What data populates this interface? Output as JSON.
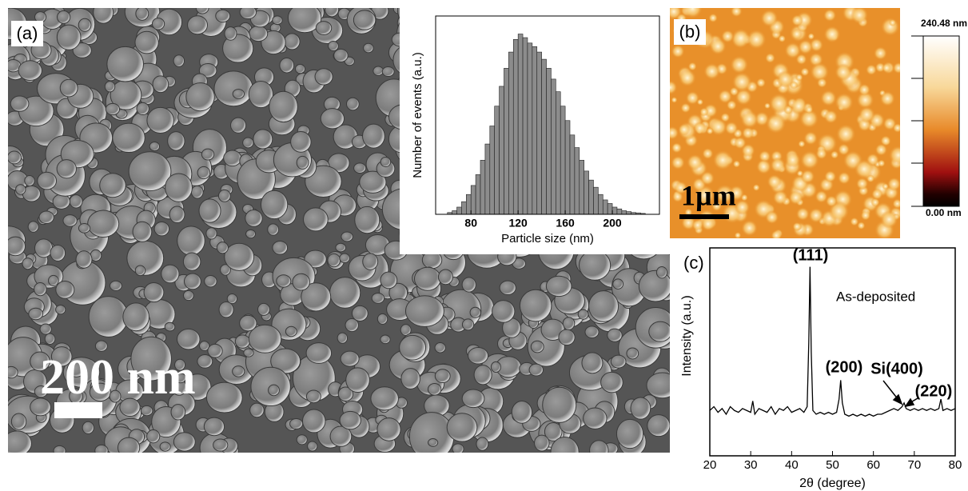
{
  "panels": {
    "a": {
      "label": "(a)",
      "scale_bar": "200 nm"
    },
    "b": {
      "label": "(b)",
      "scale_bar": "1µm",
      "colorbar_max": "240.48 nm",
      "colorbar_min": "0.00 nm"
    }
  },
  "chart_data": [
    {
      "type": "histogram",
      "x_label": "Particle size (nm)",
      "y_label": "Number of events (a.u.)",
      "bins": [
        60,
        64,
        68,
        72,
        76,
        80,
        84,
        88,
        92,
        96,
        100,
        104,
        108,
        112,
        116,
        120,
        124,
        128,
        132,
        136,
        140,
        144,
        148,
        152,
        156,
        160,
        164,
        168,
        172,
        176,
        180,
        184,
        188,
        192,
        196,
        200,
        204,
        208,
        212,
        216,
        220,
        224,
        228
      ],
      "values": [
        0.01,
        0.02,
        0.04,
        0.07,
        0.11,
        0.16,
        0.22,
        0.3,
        0.39,
        0.49,
        0.6,
        0.71,
        0.81,
        0.9,
        0.97,
        1.0,
        0.98,
        0.95,
        0.93,
        0.9,
        0.86,
        0.81,
        0.75,
        0.68,
        0.6,
        0.52,
        0.44,
        0.37,
        0.3,
        0.24,
        0.19,
        0.15,
        0.11,
        0.08,
        0.06,
        0.04,
        0.03,
        0.02,
        0.015,
        0.01,
        0.008,
        0.005
      ],
      "color": "#8c8c8c",
      "xlim": [
        50,
        240
      ],
      "xticks": [
        80,
        120,
        160,
        200
      ],
      "ylim": [
        0,
        1.1
      ]
    },
    {
      "type": "line",
      "label": "(c)",
      "x_label": "2θ (degree)",
      "y_label": "Intensity (a.u.)",
      "annotations": [
        "(111)",
        "(200)",
        "Si(400)",
        "(220)",
        "As-deposited"
      ],
      "x": [
        20,
        21,
        22,
        23,
        24,
        25,
        26,
        27,
        28,
        29,
        30,
        30.5,
        31,
        32,
        33,
        34,
        35,
        36,
        37,
        38,
        39,
        40,
        41,
        42,
        43,
        43.8,
        44.2,
        44.5,
        44.8,
        45.2,
        46,
        47,
        48,
        49,
        50,
        51,
        51.6,
        52,
        52.4,
        53,
        54,
        55,
        56,
        57,
        58,
        59,
        60,
        61,
        62,
        63,
        64,
        65,
        66,
        67,
        67.5,
        68,
        69,
        70,
        71,
        72,
        73,
        74,
        75,
        76,
        76.5,
        77,
        78,
        79,
        80
      ],
      "values": [
        0.24,
        0.26,
        0.23,
        0.25,
        0.22,
        0.26,
        0.24,
        0.23,
        0.25,
        0.24,
        0.23,
        0.29,
        0.22,
        0.25,
        0.24,
        0.23,
        0.26,
        0.22,
        0.25,
        0.24,
        0.26,
        0.23,
        0.24,
        0.25,
        0.23,
        0.26,
        0.6,
        1.0,
        0.55,
        0.24,
        0.22,
        0.23,
        0.22,
        0.23,
        0.22,
        0.23,
        0.3,
        0.4,
        0.28,
        0.22,
        0.21,
        0.22,
        0.21,
        0.22,
        0.21,
        0.22,
        0.21,
        0.22,
        0.22,
        0.23,
        0.24,
        0.25,
        0.24,
        0.26,
        0.28,
        0.25,
        0.24,
        0.25,
        0.24,
        0.25,
        0.24,
        0.25,
        0.24,
        0.25,
        0.3,
        0.24,
        0.25,
        0.24,
        0.25
      ],
      "color": "#000000",
      "xlim": [
        20,
        80
      ],
      "xticks": [
        20,
        30,
        40,
        50,
        60,
        70,
        80
      ],
      "ylim": [
        0,
        1.1
      ]
    }
  ]
}
